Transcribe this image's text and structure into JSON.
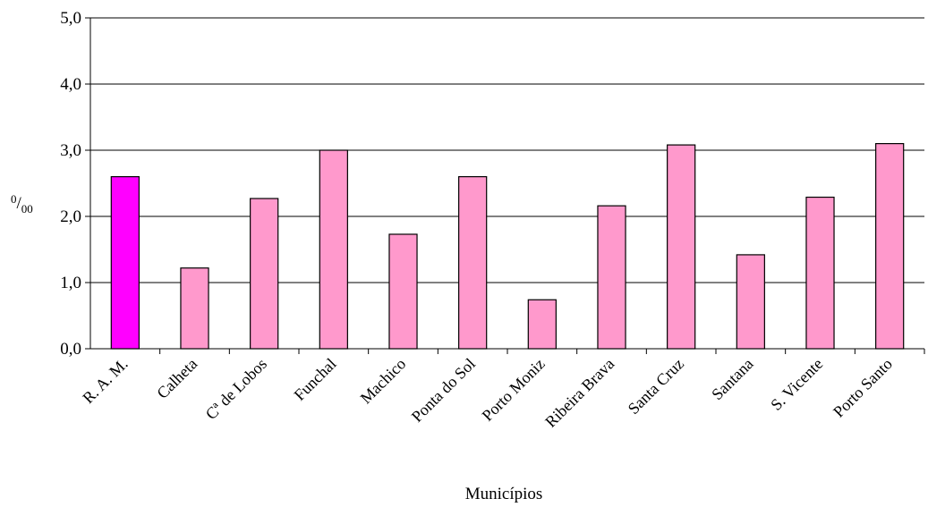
{
  "chart_data": {
    "type": "bar",
    "title": "",
    "xlabel": "Municípios",
    "ylabel_sup": "0",
    "ylabel_sub": "00",
    "ylim": [
      0,
      5
    ],
    "yticks": [
      "0,0",
      "1,0",
      "2,0",
      "3,0",
      "4,0",
      "5,0"
    ],
    "grid": "horizontal",
    "categories": [
      "R. A. M.",
      "Calheta",
      "Cª de Lobos",
      "Funchal",
      "Machico",
      "Ponta do Sol",
      "Porto Moniz",
      "Ribeira Brava",
      "Santa Cruz",
      "Santana",
      "S. Vicente",
      "Porto Santo"
    ],
    "values": [
      2.6,
      1.22,
      2.27,
      3.0,
      1.73,
      2.6,
      0.74,
      2.16,
      3.08,
      1.42,
      2.29,
      3.1
    ],
    "colors": {
      "highlight": "#ff00ff",
      "bar": "#ff99cc",
      "outline": "#000000",
      "grid": "#000000"
    }
  }
}
